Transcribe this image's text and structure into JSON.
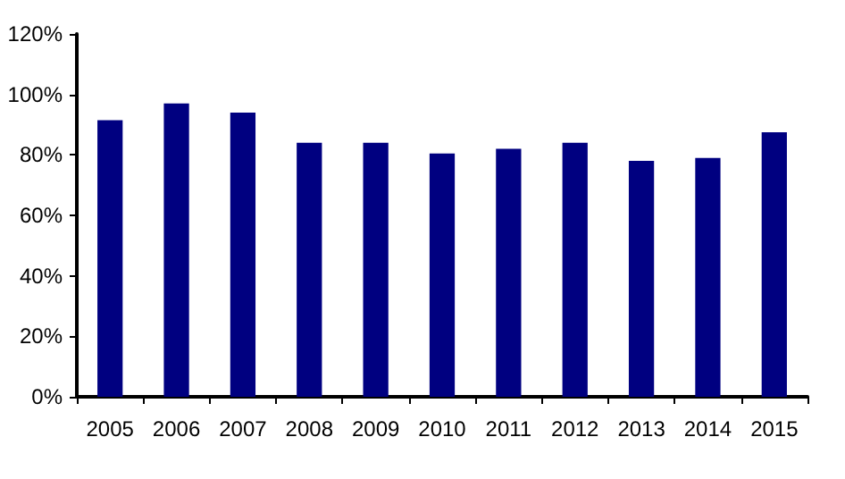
{
  "chart_data": {
    "type": "bar",
    "categories": [
      "2005",
      "2006",
      "2007",
      "2008",
      "2009",
      "2010",
      "2011",
      "2012",
      "2013",
      "2014",
      "2015"
    ],
    "values": [
      91.5,
      97,
      94,
      84,
      84,
      80.5,
      82,
      84,
      78,
      79,
      87.5
    ],
    "color": "#000080",
    "ylim": [
      0,
      120
    ],
    "yticks": [
      {
        "value": 0,
        "label": "0%"
      },
      {
        "value": 20,
        "label": "20%"
      },
      {
        "value": 40,
        "label": "40%"
      },
      {
        "value": 60,
        "label": "60%"
      },
      {
        "value": 80,
        "label": "80%"
      },
      {
        "value": 100,
        "label": "100%"
      },
      {
        "value": 120,
        "label": "120%"
      }
    ],
    "grid": false
  }
}
